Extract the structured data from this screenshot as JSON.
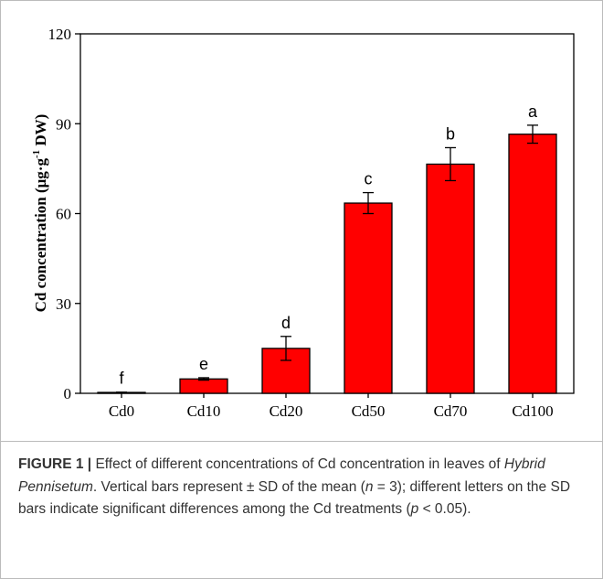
{
  "chart_data": {
    "type": "bar",
    "ylabel": "Cd concentration (μg·g",
    "ylabel_sup": "-1",
    "ylabel_end": " DW)",
    "categories": [
      "Cd0",
      "Cd10",
      "Cd20",
      "Cd50",
      "Cd70",
      "Cd100"
    ],
    "values": [
      0.3,
      4.8,
      15,
      63.5,
      76.5,
      86.5
    ],
    "errors": [
      0.1,
      0.4,
      4,
      3.5,
      5.5,
      3
    ],
    "annotations": [
      "f",
      "e",
      "d",
      "c",
      "b",
      "a"
    ],
    "color": "#ff0000",
    "ylim": [
      0,
      120
    ],
    "yticks": [
      0,
      30,
      60,
      90,
      120
    ]
  },
  "caption": [
    {
      "text": "FIGURE 1 |",
      "style": "bold"
    },
    {
      "text": " Effect of different concentrations of Cd concentration in leaves of ",
      "style": "normal"
    },
    {
      "text": "Hybrid Pennisetum",
      "style": "italic"
    },
    {
      "text": ". Vertical bars represent ± SD of the mean (",
      "style": "normal"
    },
    {
      "text": "n",
      "style": "italic"
    },
    {
      "text": " = 3); different letters on the SD bars indicate significant differences among the Cd treatments (",
      "style": "normal"
    },
    {
      "text": "p",
      "style": "italic"
    },
    {
      "text": " < 0.05).",
      "style": "normal"
    }
  ]
}
